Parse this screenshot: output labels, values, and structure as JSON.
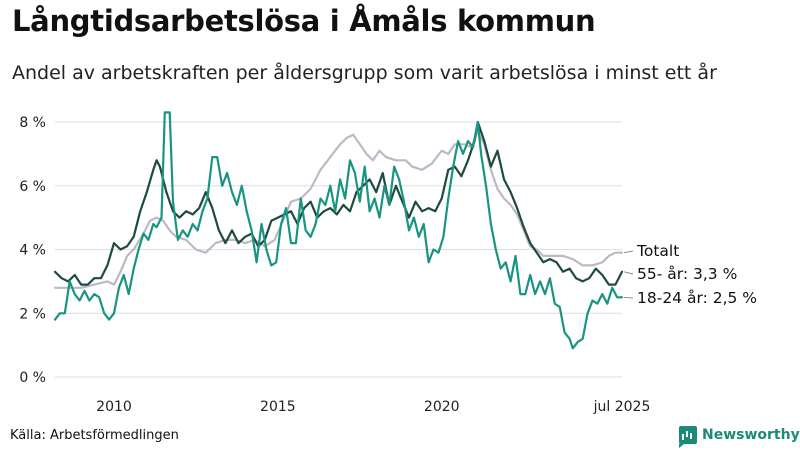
{
  "title": "Långtidsarbetslösa i Åmåls kommun",
  "subtitle": "Andel av arbetskraften per åldersgrupp som varit arbetslösa i minst ett år",
  "source": "Källa: Arbetsförmedlingen",
  "brand": {
    "name": "Newsworthy",
    "icon": "newsworthy-logo-icon"
  },
  "colors": {
    "totalt": "#bdb8c6",
    "age55": "#1e4a40",
    "age1824": "#1a9482",
    "grid": "#dddddd"
  },
  "chart_data": {
    "type": "line",
    "title": "Långtidsarbetslösa i Åmåls kommun",
    "xlabel": "",
    "ylabel": "",
    "xlim": [
      2008.2,
      2025.5
    ],
    "ylim": [
      0,
      8.4
    ],
    "grid": true,
    "y_ticks": [
      {
        "value": 0,
        "label": "0 %"
      },
      {
        "value": 2,
        "label": "2 %"
      },
      {
        "value": 4,
        "label": "4 %"
      },
      {
        "value": 6,
        "label": "6 %"
      },
      {
        "value": 8,
        "label": "8 %"
      }
    ],
    "x_ticks": [
      {
        "value": 2010,
        "label": "2010"
      },
      {
        "value": 2015,
        "label": "2015"
      },
      {
        "value": 2020,
        "label": "2020"
      },
      {
        "value": 2025.5,
        "label": "jul 2025"
      }
    ],
    "legend": "direct labels at line ends (right)",
    "series": [
      {
        "name": "Totalt",
        "key": "totalt",
        "end_label": "Totalt",
        "points": [
          [
            2008.2,
            2.8
          ],
          [
            2008.6,
            2.8
          ],
          [
            2009.0,
            2.8
          ],
          [
            2009.4,
            2.9
          ],
          [
            2009.8,
            3.0
          ],
          [
            2010.0,
            2.9
          ],
          [
            2010.2,
            3.3
          ],
          [
            2010.4,
            3.8
          ],
          [
            2010.6,
            4.0
          ],
          [
            2010.9,
            4.5
          ],
          [
            2011.1,
            4.9
          ],
          [
            2011.3,
            5.0
          ],
          [
            2011.5,
            4.9
          ],
          [
            2011.7,
            4.6
          ],
          [
            2011.9,
            4.4
          ],
          [
            2012.2,
            4.3
          ],
          [
            2012.5,
            4.0
          ],
          [
            2012.8,
            3.9
          ],
          [
            2013.1,
            4.2
          ],
          [
            2013.4,
            4.3
          ],
          [
            2013.7,
            4.3
          ],
          [
            2014.0,
            4.2
          ],
          [
            2014.3,
            4.3
          ],
          [
            2014.6,
            4.1
          ],
          [
            2014.9,
            4.3
          ],
          [
            2015.2,
            5.0
          ],
          [
            2015.4,
            5.5
          ],
          [
            2015.7,
            5.6
          ],
          [
            2016.0,
            5.9
          ],
          [
            2016.3,
            6.5
          ],
          [
            2016.6,
            6.9
          ],
          [
            2016.9,
            7.3
          ],
          [
            2017.1,
            7.5
          ],
          [
            2017.3,
            7.6
          ],
          [
            2017.5,
            7.3
          ],
          [
            2017.7,
            7.0
          ],
          [
            2017.9,
            6.8
          ],
          [
            2018.1,
            7.1
          ],
          [
            2018.3,
            6.9
          ],
          [
            2018.6,
            6.8
          ],
          [
            2018.9,
            6.8
          ],
          [
            2019.1,
            6.6
          ],
          [
            2019.4,
            6.5
          ],
          [
            2019.7,
            6.7
          ],
          [
            2020.0,
            7.1
          ],
          [
            2020.2,
            7.0
          ],
          [
            2020.4,
            7.3
          ],
          [
            2020.7,
            7.3
          ],
          [
            2020.9,
            7.2
          ],
          [
            2021.1,
            7.7
          ],
          [
            2021.3,
            7.3
          ],
          [
            2021.5,
            6.5
          ],
          [
            2021.7,
            5.9
          ],
          [
            2021.9,
            5.6
          ],
          [
            2022.1,
            5.4
          ],
          [
            2022.3,
            5.1
          ],
          [
            2022.5,
            4.6
          ],
          [
            2022.7,
            4.1
          ],
          [
            2022.9,
            4.0
          ],
          [
            2023.1,
            3.8
          ],
          [
            2023.4,
            3.8
          ],
          [
            2023.7,
            3.8
          ],
          [
            2024.0,
            3.7
          ],
          [
            2024.3,
            3.5
          ],
          [
            2024.6,
            3.5
          ],
          [
            2024.9,
            3.6
          ],
          [
            2025.1,
            3.8
          ],
          [
            2025.3,
            3.9
          ],
          [
            2025.5,
            3.9
          ]
        ]
      },
      {
        "name": "55- år",
        "key": "age55",
        "end_label": "55- år: 3,3 %",
        "last_value": 3.3,
        "points": [
          [
            2008.2,
            3.3
          ],
          [
            2008.4,
            3.1
          ],
          [
            2008.6,
            3.0
          ],
          [
            2008.8,
            3.2
          ],
          [
            2009.0,
            2.9
          ],
          [
            2009.2,
            2.9
          ],
          [
            2009.4,
            3.1
          ],
          [
            2009.6,
            3.1
          ],
          [
            2009.8,
            3.5
          ],
          [
            2010.0,
            4.2
          ],
          [
            2010.2,
            4.0
          ],
          [
            2010.4,
            4.1
          ],
          [
            2010.6,
            4.4
          ],
          [
            2010.8,
            5.2
          ],
          [
            2011.0,
            5.8
          ],
          [
            2011.2,
            6.5
          ],
          [
            2011.3,
            6.8
          ],
          [
            2011.4,
            6.6
          ],
          [
            2011.6,
            5.8
          ],
          [
            2011.8,
            5.2
          ],
          [
            2012.0,
            5.0
          ],
          [
            2012.2,
            5.2
          ],
          [
            2012.4,
            5.1
          ],
          [
            2012.6,
            5.3
          ],
          [
            2012.8,
            5.8
          ],
          [
            2013.0,
            5.3
          ],
          [
            2013.2,
            4.6
          ],
          [
            2013.4,
            4.2
          ],
          [
            2013.6,
            4.6
          ],
          [
            2013.8,
            4.2
          ],
          [
            2014.0,
            4.4
          ],
          [
            2014.2,
            4.5
          ],
          [
            2014.4,
            4.1
          ],
          [
            2014.6,
            4.3
          ],
          [
            2014.8,
            4.9
          ],
          [
            2015.0,
            5.0
          ],
          [
            2015.2,
            5.1
          ],
          [
            2015.4,
            5.2
          ],
          [
            2015.6,
            4.8
          ],
          [
            2015.8,
            5.3
          ],
          [
            2016.0,
            5.5
          ],
          [
            2016.2,
            5.0
          ],
          [
            2016.4,
            5.2
          ],
          [
            2016.6,
            5.3
          ],
          [
            2016.8,
            5.1
          ],
          [
            2017.0,
            5.4
          ],
          [
            2017.2,
            5.2
          ],
          [
            2017.4,
            5.8
          ],
          [
            2017.6,
            6.0
          ],
          [
            2017.8,
            6.2
          ],
          [
            2018.0,
            5.8
          ],
          [
            2018.2,
            6.4
          ],
          [
            2018.4,
            5.4
          ],
          [
            2018.6,
            6.0
          ],
          [
            2018.8,
            5.5
          ],
          [
            2019.0,
            5.0
          ],
          [
            2019.2,
            5.5
          ],
          [
            2019.4,
            5.2
          ],
          [
            2019.6,
            5.3
          ],
          [
            2019.8,
            5.2
          ],
          [
            2020.0,
            5.6
          ],
          [
            2020.2,
            6.5
          ],
          [
            2020.4,
            6.6
          ],
          [
            2020.6,
            6.3
          ],
          [
            2020.8,
            6.8
          ],
          [
            2021.0,
            7.4
          ],
          [
            2021.1,
            8.0
          ],
          [
            2021.3,
            7.4
          ],
          [
            2021.5,
            6.6
          ],
          [
            2021.7,
            7.1
          ],
          [
            2021.9,
            6.2
          ],
          [
            2022.1,
            5.8
          ],
          [
            2022.3,
            5.3
          ],
          [
            2022.5,
            4.7
          ],
          [
            2022.7,
            4.2
          ],
          [
            2022.9,
            3.9
          ],
          [
            2023.1,
            3.6
          ],
          [
            2023.3,
            3.7
          ],
          [
            2023.5,
            3.6
          ],
          [
            2023.7,
            3.3
          ],
          [
            2023.9,
            3.4
          ],
          [
            2024.1,
            3.1
          ],
          [
            2024.3,
            3.0
          ],
          [
            2024.5,
            3.1
          ],
          [
            2024.7,
            3.4
          ],
          [
            2024.9,
            3.2
          ],
          [
            2025.1,
            2.9
          ],
          [
            2025.3,
            2.9
          ],
          [
            2025.5,
            3.3
          ]
        ]
      },
      {
        "name": "18-24 år",
        "key": "age1824",
        "end_label": "18-24 år: 2,5 %",
        "last_value": 2.5,
        "points": [
          [
            2008.2,
            1.8
          ],
          [
            2008.35,
            2.0
          ],
          [
            2008.5,
            2.0
          ],
          [
            2008.65,
            3.0
          ],
          [
            2008.8,
            2.6
          ],
          [
            2008.95,
            2.4
          ],
          [
            2009.1,
            2.7
          ],
          [
            2009.25,
            2.4
          ],
          [
            2009.4,
            2.6
          ],
          [
            2009.55,
            2.5
          ],
          [
            2009.7,
            2.0
          ],
          [
            2009.85,
            1.8
          ],
          [
            2010.0,
            2.0
          ],
          [
            2010.15,
            2.8
          ],
          [
            2010.3,
            3.2
          ],
          [
            2010.45,
            2.6
          ],
          [
            2010.6,
            3.4
          ],
          [
            2010.75,
            4.0
          ],
          [
            2010.9,
            4.5
          ],
          [
            2011.05,
            4.3
          ],
          [
            2011.2,
            4.8
          ],
          [
            2011.3,
            4.7
          ],
          [
            2011.45,
            5.0
          ],
          [
            2011.55,
            8.3
          ],
          [
            2011.7,
            8.3
          ],
          [
            2011.8,
            5.5
          ],
          [
            2011.95,
            4.3
          ],
          [
            2012.1,
            4.6
          ],
          [
            2012.25,
            4.4
          ],
          [
            2012.4,
            4.8
          ],
          [
            2012.55,
            4.6
          ],
          [
            2012.7,
            5.2
          ],
          [
            2012.85,
            5.6
          ],
          [
            2013.0,
            6.9
          ],
          [
            2013.15,
            6.9
          ],
          [
            2013.3,
            6.0
          ],
          [
            2013.45,
            6.4
          ],
          [
            2013.6,
            5.8
          ],
          [
            2013.75,
            5.4
          ],
          [
            2013.9,
            6.0
          ],
          [
            2014.05,
            5.2
          ],
          [
            2014.2,
            4.6
          ],
          [
            2014.35,
            3.6
          ],
          [
            2014.5,
            4.8
          ],
          [
            2014.65,
            4.0
          ],
          [
            2014.8,
            3.5
          ],
          [
            2014.95,
            3.6
          ],
          [
            2015.1,
            4.8
          ],
          [
            2015.25,
            5.3
          ],
          [
            2015.4,
            4.2
          ],
          [
            2015.55,
            4.2
          ],
          [
            2015.7,
            5.6
          ],
          [
            2015.85,
            4.6
          ],
          [
            2016.0,
            4.4
          ],
          [
            2016.15,
            4.8
          ],
          [
            2016.3,
            5.6
          ],
          [
            2016.45,
            5.4
          ],
          [
            2016.6,
            6.0
          ],
          [
            2016.75,
            5.2
          ],
          [
            2016.9,
            6.2
          ],
          [
            2017.05,
            5.6
          ],
          [
            2017.2,
            6.8
          ],
          [
            2017.35,
            6.4
          ],
          [
            2017.5,
            5.5
          ],
          [
            2017.65,
            6.6
          ],
          [
            2017.8,
            5.2
          ],
          [
            2017.95,
            5.6
          ],
          [
            2018.1,
            5.0
          ],
          [
            2018.25,
            6.0
          ],
          [
            2018.4,
            5.4
          ],
          [
            2018.55,
            6.6
          ],
          [
            2018.7,
            6.2
          ],
          [
            2018.85,
            5.5
          ],
          [
            2019.0,
            4.6
          ],
          [
            2019.15,
            5.0
          ],
          [
            2019.3,
            4.4
          ],
          [
            2019.45,
            4.8
          ],
          [
            2019.6,
            3.6
          ],
          [
            2019.75,
            4.0
          ],
          [
            2019.9,
            3.9
          ],
          [
            2020.05,
            4.4
          ],
          [
            2020.2,
            5.6
          ],
          [
            2020.35,
            6.6
          ],
          [
            2020.5,
            7.4
          ],
          [
            2020.65,
            7.0
          ],
          [
            2020.8,
            7.4
          ],
          [
            2020.95,
            7.2
          ],
          [
            2021.1,
            8.0
          ],
          [
            2021.2,
            7.0
          ],
          [
            2021.35,
            6.0
          ],
          [
            2021.5,
            4.8
          ],
          [
            2021.65,
            4.0
          ],
          [
            2021.8,
            3.4
          ],
          [
            2021.95,
            3.6
          ],
          [
            2022.1,
            3.0
          ],
          [
            2022.25,
            3.8
          ],
          [
            2022.4,
            2.6
          ],
          [
            2022.55,
            2.6
          ],
          [
            2022.7,
            3.2
          ],
          [
            2022.85,
            2.6
          ],
          [
            2023.0,
            3.0
          ],
          [
            2023.15,
            2.6
          ],
          [
            2023.3,
            3.1
          ],
          [
            2023.45,
            2.3
          ],
          [
            2023.6,
            2.2
          ],
          [
            2023.75,
            1.4
          ],
          [
            2023.9,
            1.2
          ],
          [
            2024.0,
            0.9
          ],
          [
            2024.15,
            1.1
          ],
          [
            2024.3,
            1.2
          ],
          [
            2024.45,
            2.0
          ],
          [
            2024.6,
            2.4
          ],
          [
            2024.75,
            2.3
          ],
          [
            2024.9,
            2.6
          ],
          [
            2025.05,
            2.3
          ],
          [
            2025.2,
            2.8
          ],
          [
            2025.35,
            2.5
          ],
          [
            2025.5,
            2.5
          ]
        ]
      }
    ]
  }
}
